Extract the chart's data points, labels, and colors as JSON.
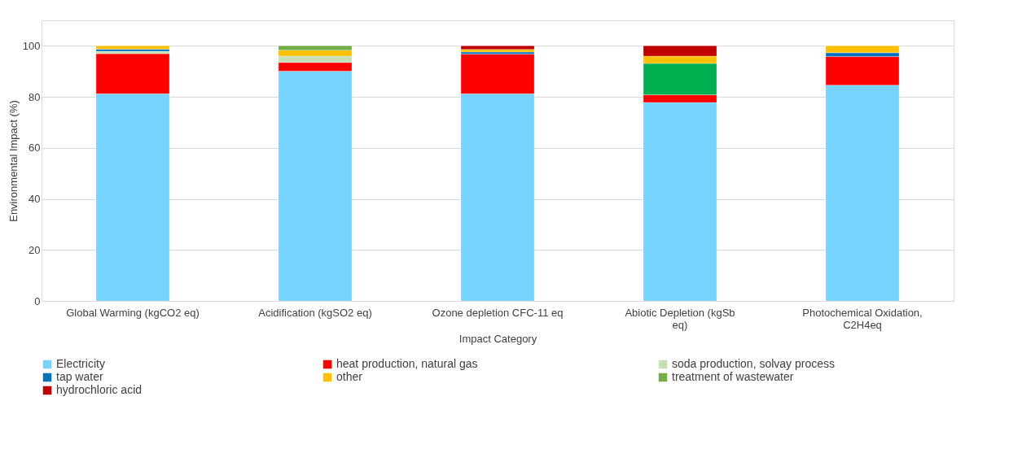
{
  "chart_data": {
    "type": "bar",
    "stacked": true,
    "xlabel": "Impact Category",
    "ylabel": "Environmental Impact (%)",
    "categories": [
      "Global Warming (kgCO2 eq)",
      "Acidification (kgSO2 eq)",
      "Ozone depletion CFC-11 eq",
      "Abiotic Depletion (kgSb eq)",
      "Photochemical Oxidation, C2H4eq"
    ],
    "series": [
      {
        "name": "Electricity",
        "color": "#75d3fe",
        "values": [
          81.2,
          90.1,
          81.2,
          77.8,
          84.6
        ]
      },
      {
        "name": "heat production, natural gas",
        "color": "#ff0000",
        "values": [
          15.7,
          3.4,
          15.6,
          3.0,
          11.2
        ]
      },
      {
        "name": "soda production, solvay process",
        "color": "#c5e0b4",
        "colors": [
          "#c5e0b4",
          "#c5e0b4",
          "#c5e0b4",
          "#00b050",
          "#c5e0b4"
        ],
        "values": [
          1.0,
          2.5,
          null,
          12.3,
          null
        ]
      },
      {
        "name": "tap water",
        "color": "#0070c0",
        "values": [
          0.8,
          null,
          0.8,
          null,
          1.5
        ]
      },
      {
        "name": "other",
        "color": "#ffc000",
        "values": [
          1.3,
          2.3,
          1.0,
          2.9,
          2.7
        ]
      },
      {
        "name": "treatment of wastewater",
        "color": "#70ad47",
        "values": [
          null,
          1.7,
          null,
          null,
          null
        ]
      },
      {
        "name": "hydrochloric acid",
        "color": "#c00000",
        "values": [
          null,
          null,
          1.4,
          4.0,
          null
        ]
      }
    ],
    "ylim": [
      0,
      110
    ],
    "yticks": [
      0,
      20,
      40,
      60,
      80,
      100
    ],
    "grid": "y",
    "legend": "bottom"
  }
}
